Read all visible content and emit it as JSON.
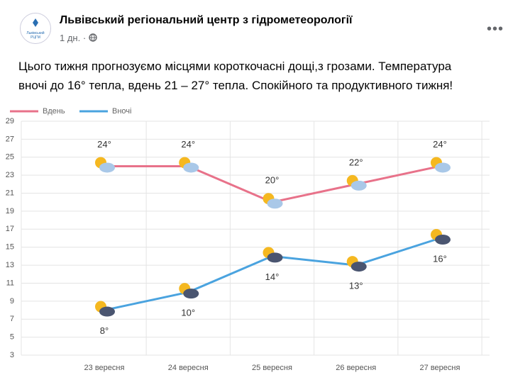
{
  "post": {
    "author": "Львівський регіональний центр з гідрометеорології",
    "avatar_text": "Львівський РЦГМ",
    "time": "1 дн.",
    "text_lines": [
      "Цього тижня прогнозуємо місцями короткочасні дощі,з грозами. Температура",
      "вночі до 16° тепла, вдень 21 – 27° тепла.  Спокійного та продуктивного тижня!"
    ]
  },
  "chart_data": {
    "type": "line",
    "categories": [
      "23 вересня",
      "24 вересня",
      "25 вересня",
      "26 вересня",
      "27 вересня"
    ],
    "series": [
      {
        "name": "Вдень",
        "color": "#e8728a",
        "values": [
          24,
          24,
          20,
          22,
          24
        ],
        "value_labels": [
          "24°",
          "24°",
          "20°",
          "22°",
          "24°"
        ]
      },
      {
        "name": "Вночі",
        "color": "#4aa3df",
        "values": [
          8,
          10,
          14,
          13,
          16
        ],
        "value_labels": [
          "8°",
          "10°",
          "14°",
          "13°",
          "16°"
        ]
      }
    ],
    "ylim": [
      3,
      29
    ],
    "yticks": [
      3,
      5,
      7,
      9,
      11,
      13,
      15,
      17,
      19,
      21,
      23,
      25,
      27,
      29
    ],
    "grid": true
  }
}
